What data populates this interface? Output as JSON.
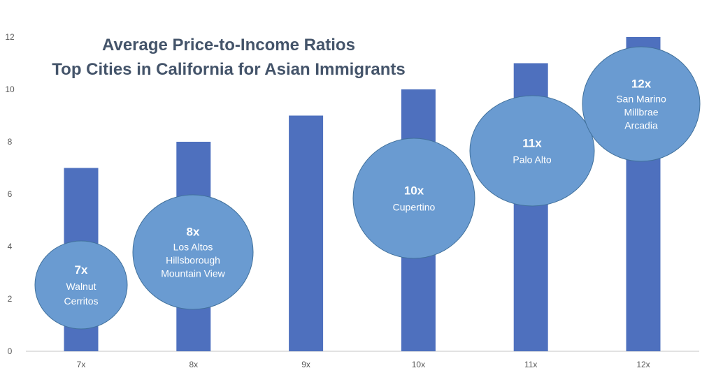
{
  "chart_data": {
    "type": "bar",
    "title": [
      "Average Price-to-Income Ratios",
      "Top Cities in California for Asian Immigrants"
    ],
    "categories": [
      "7x",
      "8x",
      "9x",
      "10x",
      "11x",
      "12x"
    ],
    "values": [
      7,
      8,
      9,
      10,
      11,
      12
    ],
    "ylim": [
      0,
      12
    ],
    "yticks": [
      0,
      2,
      4,
      6,
      8,
      10,
      12
    ],
    "xlabel": "",
    "ylabel": "",
    "grid": false,
    "colors": {
      "bar": "#4e70be",
      "bubble": "#6a9bd1",
      "bubble_border": "#41719c",
      "title": "#44546a"
    },
    "annotations": [
      {
        "category": "7x",
        "heading": "7x",
        "lines": [
          "Walnut",
          "Cerritos"
        ]
      },
      {
        "category": "8x",
        "heading": "8x",
        "lines": [
          "Los Altos",
          "Hillsborough",
          "Mountain View"
        ]
      },
      {
        "category": "10x",
        "heading": "10x",
        "lines": [
          "Cupertino"
        ]
      },
      {
        "category": "11x",
        "heading": "11x",
        "lines": [
          "Palo Alto"
        ]
      },
      {
        "category": "12x",
        "heading": "12x",
        "lines": [
          "San Marino",
          "Millbrae",
          "Arcadia"
        ]
      }
    ]
  }
}
